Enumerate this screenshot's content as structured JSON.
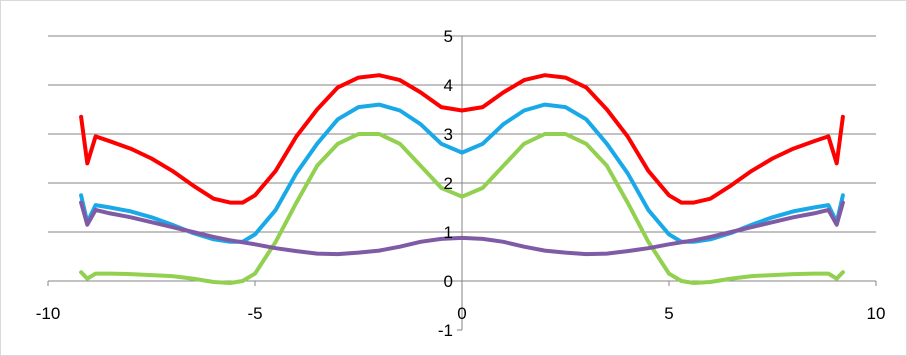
{
  "chart_data": {
    "type": "line",
    "title": "",
    "xlabel": "",
    "ylabel": "",
    "xlim": [
      -10,
      10
    ],
    "ylim": [
      -1,
      5
    ],
    "x_ticks": [
      -10,
      -5,
      0,
      5,
      10
    ],
    "y_ticks": [
      -1,
      0,
      1,
      2,
      3,
      4,
      5
    ],
    "x_tick_labels": [
      "-10",
      "-5",
      "0",
      "5",
      "10"
    ],
    "y_tick_labels": [
      "-1",
      "0",
      "1",
      "2",
      "3",
      "4",
      "5"
    ],
    "grid": "horizontal",
    "legend": "none",
    "series": [
      {
        "color": "#ff0000",
        "x": [
          -9.2,
          -9.05,
          -8.85,
          -8.5,
          -8,
          -7.5,
          -7,
          -6.5,
          -6,
          -5.6,
          -5.3,
          -5,
          -4.5,
          -4,
          -3.5,
          -3,
          -2.5,
          -2,
          -1.5,
          -1,
          -0.5,
          0,
          0.5,
          1,
          1.5,
          2,
          2.5,
          3,
          3.5,
          4,
          4.5,
          5,
          5.3,
          5.6,
          6,
          6.5,
          7,
          7.5,
          8,
          8.5,
          8.85,
          9.05,
          9.2
        ],
        "y": [
          3.35,
          2.4,
          2.95,
          2.85,
          2.7,
          2.5,
          2.25,
          1.95,
          1.68,
          1.6,
          1.6,
          1.75,
          2.25,
          2.95,
          3.5,
          3.95,
          4.15,
          4.2,
          4.1,
          3.85,
          3.55,
          3.48,
          3.55,
          3.85,
          4.1,
          4.2,
          4.15,
          3.95,
          3.5,
          2.95,
          2.25,
          1.75,
          1.6,
          1.6,
          1.68,
          1.95,
          2.25,
          2.5,
          2.7,
          2.85,
          2.95,
          2.4,
          3.35
        ]
      },
      {
        "color": "#1aa9e8",
        "x": [
          -9.2,
          -9.05,
          -8.85,
          -8.5,
          -8,
          -7.5,
          -7,
          -6.5,
          -6,
          -5.6,
          -5.3,
          -5,
          -4.5,
          -4,
          -3.5,
          -3,
          -2.5,
          -2,
          -1.5,
          -1,
          -0.5,
          0,
          0.5,
          1,
          1.5,
          2,
          2.5,
          3,
          3.5,
          4,
          4.5,
          5,
          5.3,
          5.6,
          6,
          6.5,
          7,
          7.5,
          8,
          8.5,
          8.85,
          9.05,
          9.2
        ],
        "y": [
          1.75,
          1.2,
          1.55,
          1.5,
          1.42,
          1.3,
          1.15,
          0.98,
          0.85,
          0.8,
          0.8,
          0.95,
          1.45,
          2.2,
          2.8,
          3.3,
          3.55,
          3.6,
          3.48,
          3.2,
          2.8,
          2.62,
          2.8,
          3.2,
          3.48,
          3.6,
          3.55,
          3.3,
          2.8,
          2.2,
          1.45,
          0.95,
          0.8,
          0.8,
          0.85,
          0.98,
          1.15,
          1.3,
          1.42,
          1.5,
          1.55,
          1.2,
          1.75
        ]
      },
      {
        "color": "#92d050",
        "x": [
          -9.2,
          -9.05,
          -8.85,
          -8.5,
          -8,
          -7.5,
          -7,
          -6.5,
          -6,
          -5.6,
          -5.3,
          -5,
          -4.5,
          -4,
          -3.5,
          -3,
          -2.5,
          -2,
          -1.5,
          -1,
          -0.5,
          0,
          0.5,
          1,
          1.5,
          2,
          2.5,
          3,
          3.5,
          4,
          4.5,
          5,
          5.3,
          5.6,
          6,
          6.5,
          7,
          7.5,
          8,
          8.5,
          8.85,
          9.05,
          9.2
        ],
        "y": [
          0.18,
          0.05,
          0.15,
          0.15,
          0.14,
          0.12,
          0.1,
          0.05,
          -0.02,
          -0.04,
          0.0,
          0.15,
          0.8,
          1.6,
          2.35,
          2.8,
          3.0,
          3.0,
          2.8,
          2.35,
          1.9,
          1.72,
          1.9,
          2.35,
          2.8,
          3.0,
          3.0,
          2.8,
          2.35,
          1.6,
          0.8,
          0.15,
          0.0,
          -0.04,
          -0.02,
          0.05,
          0.1,
          0.12,
          0.14,
          0.15,
          0.15,
          0.05,
          0.18
        ]
      },
      {
        "color": "#7f5aa5",
        "x": [
          -9.2,
          -9.05,
          -8.85,
          -8.5,
          -8,
          -7.5,
          -7,
          -6.5,
          -6,
          -5.6,
          -5.3,
          -5,
          -4.5,
          -4,
          -3.5,
          -3,
          -2.5,
          -2,
          -1.5,
          -1,
          -0.5,
          0,
          0.5,
          1,
          1.5,
          2,
          2.5,
          3,
          3.5,
          4,
          4.5,
          5,
          5.3,
          5.6,
          6,
          6.5,
          7,
          7.5,
          8,
          8.5,
          8.85,
          9.05,
          9.2
        ],
        "y": [
          1.6,
          1.15,
          1.45,
          1.38,
          1.3,
          1.2,
          1.1,
          1.0,
          0.9,
          0.83,
          0.79,
          0.75,
          0.67,
          0.61,
          0.56,
          0.55,
          0.58,
          0.62,
          0.7,
          0.8,
          0.86,
          0.88,
          0.86,
          0.8,
          0.7,
          0.62,
          0.58,
          0.55,
          0.56,
          0.61,
          0.67,
          0.75,
          0.79,
          0.83,
          0.9,
          1.0,
          1.1,
          1.2,
          1.3,
          1.38,
          1.45,
          1.15,
          1.6
        ]
      }
    ]
  }
}
